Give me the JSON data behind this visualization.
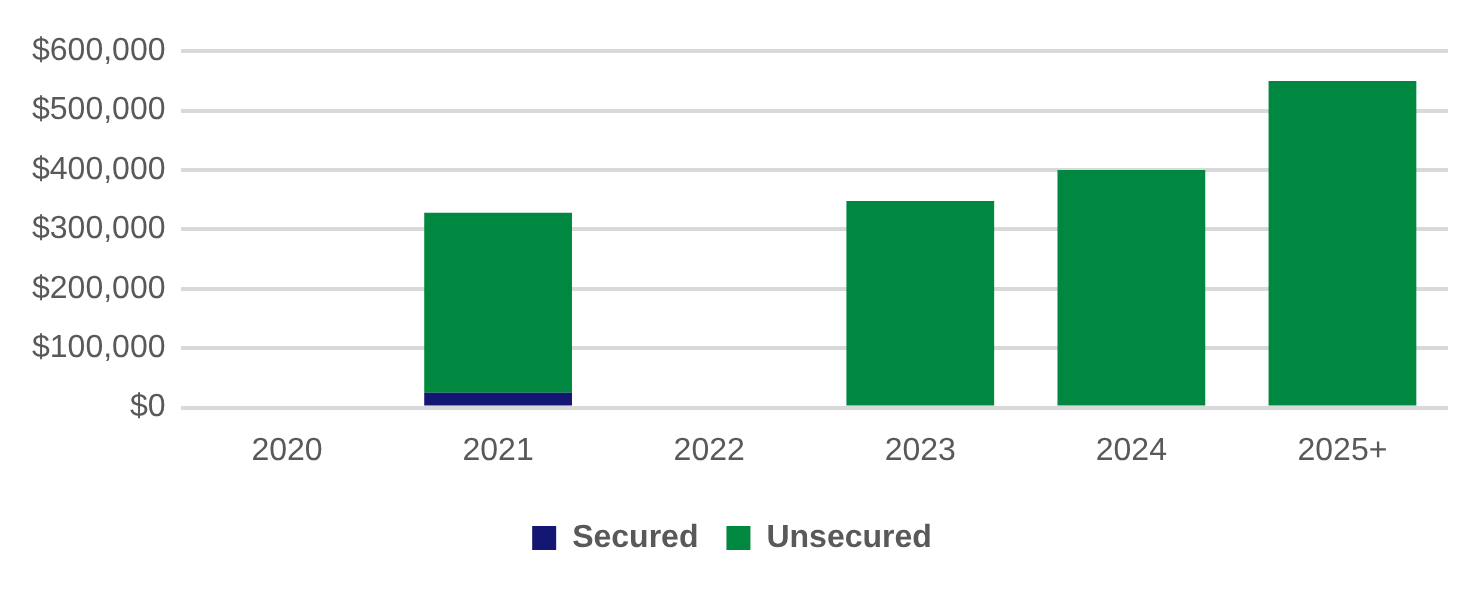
{
  "chart_data": {
    "type": "bar",
    "stacked": true,
    "categories": [
      "2020",
      "2021",
      "2022",
      "2023",
      "2024",
      "2025+"
    ],
    "series": [
      {
        "name": "Secured",
        "color": "#131672",
        "values": [
          0,
          25000,
          0,
          0,
          0,
          0
        ]
      },
      {
        "name": "Unsecured",
        "color": "#008841",
        "values": [
          0,
          303000,
          0,
          348000,
          400000,
          550000
        ]
      }
    ],
    "ylim": [
      0,
      600000
    ],
    "yticks": [
      {
        "value": 0,
        "label": "$0"
      },
      {
        "value": 100000,
        "label": "$100,000"
      },
      {
        "value": 200000,
        "label": "$200,000"
      },
      {
        "value": 300000,
        "label": "$300,000"
      },
      {
        "value": 400000,
        "label": "$400,000"
      },
      {
        "value": 500000,
        "label": "$500,000"
      },
      {
        "value": 600000,
        "label": "$600,000"
      }
    ],
    "grid": "y",
    "legend": "bottom"
  }
}
